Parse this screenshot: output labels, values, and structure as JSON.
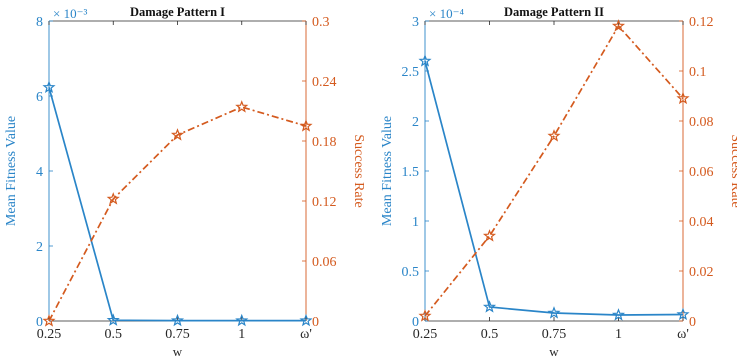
{
  "chart_data": [
    {
      "type": "line",
      "title": "Damage Pattern I",
      "xlabel": "w",
      "ylabel_left": "Mean Fitness Value",
      "ylabel_right": "Success Rate",
      "left_exponent": "× 10⁻³",
      "categories": [
        "0.25",
        "0.5",
        "0.75",
        "1",
        "ω'"
      ],
      "left_axis": {
        "ylim": [
          0,
          0.008
        ],
        "ticks": [
          0,
          0.002,
          0.004,
          0.006,
          0.008
        ],
        "tick_labels": [
          "0",
          "2",
          "4",
          "6",
          "8"
        ],
        "color": "#2a85c8"
      },
      "right_axis": {
        "ylim": [
          0,
          0.3
        ],
        "ticks": [
          0,
          0.06,
          0.12,
          0.18,
          0.24,
          0.3
        ],
        "tick_labels": [
          "0",
          "0.06",
          "0.12",
          "0.18",
          "0.24",
          "0.3"
        ],
        "color": "#d45a1e"
      },
      "series": [
        {
          "axis": "left",
          "color": "#2a85c8",
          "style": "solid",
          "marker": "star",
          "values": [
            0.00623,
            2e-05,
            1e-05,
            1e-05,
            1e-05
          ]
        },
        {
          "axis": "right",
          "color": "#d45a1e",
          "style": "dashdot",
          "marker": "star",
          "values": [
            0.0,
            0.122,
            0.186,
            0.214,
            0.195
          ]
        }
      ]
    },
    {
      "type": "line",
      "title": "Damage Pattern II",
      "xlabel": "w",
      "ylabel_left": "Mean Fitness Value",
      "ylabel_right": "Success Rate",
      "left_exponent": "× 10⁻⁴",
      "categories": [
        "0.25",
        "0.5",
        "0.75",
        "1",
        "ω'"
      ],
      "left_axis": {
        "ylim": [
          0,
          0.0003
        ],
        "ticks": [
          0,
          5e-05,
          0.0001,
          0.00015,
          0.0002,
          0.00025,
          0.0003
        ],
        "tick_labels": [
          "0",
          "0.5",
          "1",
          "1.5",
          "2",
          "2.5",
          "3"
        ],
        "color": "#2a85c8"
      },
      "right_axis": {
        "ylim": [
          0,
          0.12
        ],
        "ticks": [
          0,
          0.02,
          0.04,
          0.06,
          0.08,
          0.1,
          0.12
        ],
        "tick_labels": [
          "0",
          "0.02",
          "0.04",
          "0.06",
          "0.08",
          "0.1",
          "0.12"
        ],
        "color": "#d45a1e"
      },
      "series": [
        {
          "axis": "left",
          "color": "#2a85c8",
          "style": "solid",
          "marker": "star",
          "values": [
            0.00026,
            1.4e-05,
            8e-06,
            6e-06,
            6.5e-06
          ]
        },
        {
          "axis": "right",
          "color": "#d45a1e",
          "style": "dashdot",
          "marker": "star",
          "values": [
            0.002,
            0.034,
            0.074,
            0.118,
            0.089
          ]
        }
      ]
    }
  ]
}
